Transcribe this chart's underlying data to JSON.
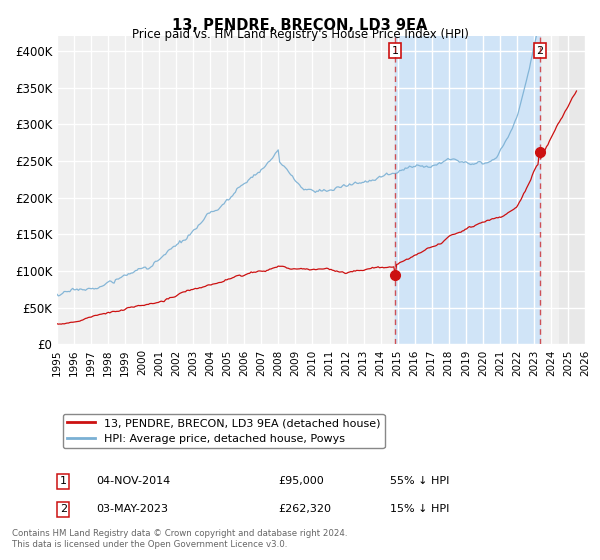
{
  "title": "13, PENDRE, BRECON, LD3 9EA",
  "subtitle": "Price paid vs. HM Land Registry's House Price Index (HPI)",
  "ylabel_values": [
    0,
    50000,
    100000,
    150000,
    200000,
    250000,
    300000,
    350000,
    400000
  ],
  "ylim": [
    0,
    420000
  ],
  "xlim_start": 1995,
  "xlim_end": 2026,
  "hpi_color": "#7ab0d4",
  "price_color": "#cc1111",
  "background_color": "#ffffff",
  "plot_bg_color": "#f0f0f0",
  "grid_color": "#ffffff",
  "shade_between_x1": 2014.85,
  "shade_between_x2": 2023.35,
  "shade_color": "#d0e4f7",
  "hatch_start": 2024.5,
  "pt1_x": 2014.85,
  "pt1_y": 95000,
  "pt2_x": 2023.35,
  "pt2_y": 262320,
  "annotation1": {
    "label": "1",
    "date": "04-NOV-2014",
    "price": "£95,000",
    "note": "55% ↓ HPI"
  },
  "annotation2": {
    "label": "2",
    "date": "03-MAY-2023",
    "price": "£262,320",
    "note": "15% ↓ HPI"
  },
  "legend_line1": "13, PENDRE, BRECON, LD3 9EA (detached house)",
  "legend_line2": "HPI: Average price, detached house, Powys",
  "footnote": "Contains HM Land Registry data © Crown copyright and database right 2024.\nThis data is licensed under the Open Government Licence v3.0."
}
